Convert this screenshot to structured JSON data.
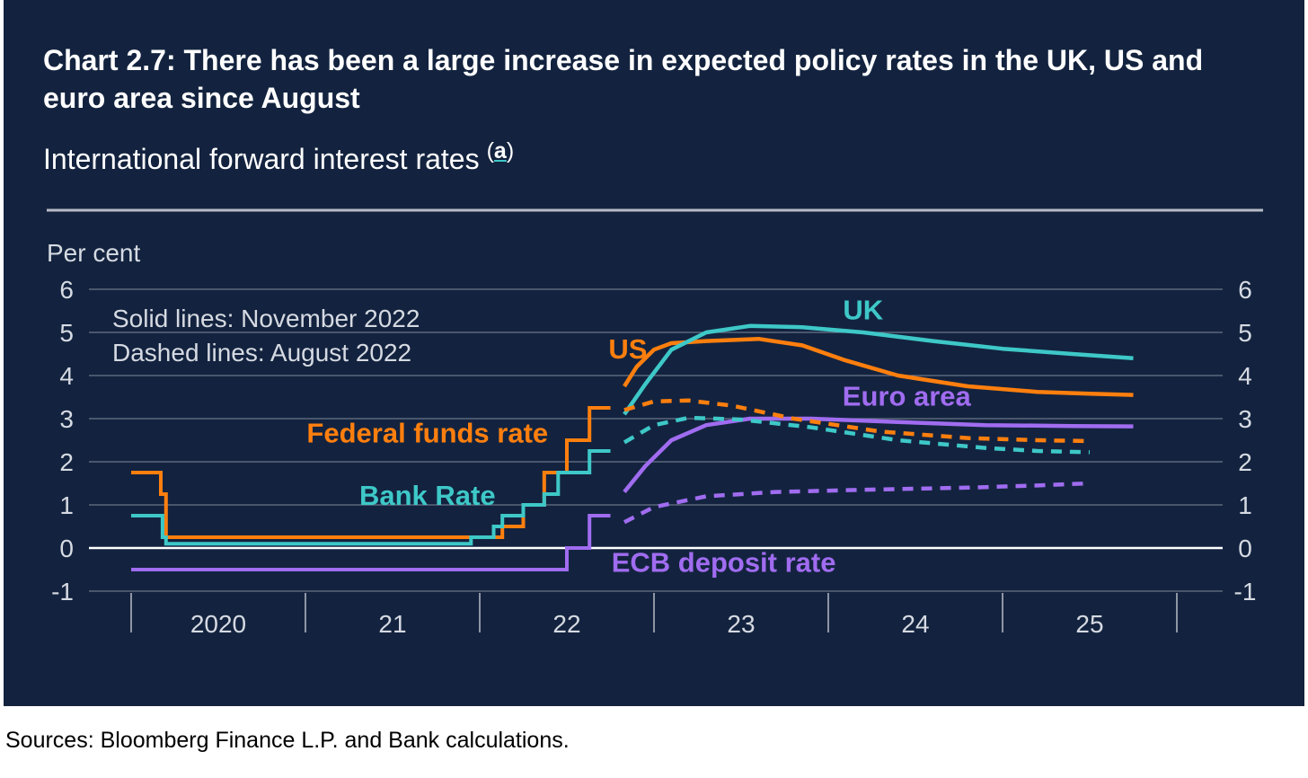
{
  "title": "Chart 2.7: There has been a large increase in expected policy rates in the UK, US and euro area since August",
  "subtitle": "International forward interest rates",
  "footnote_marker": "a",
  "sources": "Sources: Bloomberg Finance L.P. and Bank calculations.",
  "colors": {
    "background": "#13233f",
    "us": "#ff7f0e",
    "uk": "#3ec8c8",
    "euro": "#a06cf0",
    "text": "#ffffff",
    "axis_text": "#d6dae2"
  },
  "chart_data": {
    "type": "line",
    "ylabel": "Per cent",
    "ylim": [
      -1,
      6
    ],
    "yticks": [
      "-1",
      "0",
      "1",
      "2",
      "3",
      "4",
      "5",
      "6"
    ],
    "xlim": [
      2020.0,
      2026.0
    ],
    "xtick_labels": [
      "2020",
      "21",
      "22",
      "23",
      "24",
      "25"
    ],
    "grid": true,
    "annotation": [
      "Solid lines: November 2022",
      "Dashed lines: August 2022"
    ],
    "series": [
      {
        "name": "Federal funds rate",
        "key": "fed",
        "color": "#ff7f0e",
        "style": "step",
        "points": [
          [
            2020.0,
            1.75
          ],
          [
            2020.17,
            1.75
          ],
          [
            2020.17,
            1.25
          ],
          [
            2020.2,
            1.25
          ],
          [
            2020.2,
            0.25
          ],
          [
            2022.13,
            0.25
          ],
          [
            2022.13,
            0.5
          ],
          [
            2022.25,
            0.5
          ],
          [
            2022.25,
            1.0
          ],
          [
            2022.37,
            1.0
          ],
          [
            2022.37,
            1.75
          ],
          [
            2022.5,
            1.75
          ],
          [
            2022.5,
            2.5
          ],
          [
            2022.63,
            2.5
          ],
          [
            2022.63,
            3.25
          ],
          [
            2022.75,
            3.25
          ]
        ]
      },
      {
        "name": "Bank Rate",
        "key": "bank",
        "color": "#3ec8c8",
        "style": "step",
        "points": [
          [
            2020.0,
            0.75
          ],
          [
            2020.18,
            0.75
          ],
          [
            2020.18,
            0.25
          ],
          [
            2020.2,
            0.25
          ],
          [
            2020.2,
            0.1
          ],
          [
            2021.95,
            0.1
          ],
          [
            2021.95,
            0.25
          ],
          [
            2022.08,
            0.25
          ],
          [
            2022.08,
            0.5
          ],
          [
            2022.13,
            0.5
          ],
          [
            2022.13,
            0.75
          ],
          [
            2022.25,
            0.75
          ],
          [
            2022.25,
            1.0
          ],
          [
            2022.37,
            1.0
          ],
          [
            2022.37,
            1.25
          ],
          [
            2022.45,
            1.25
          ],
          [
            2022.45,
            1.75
          ],
          [
            2022.63,
            1.75
          ],
          [
            2022.63,
            2.25
          ],
          [
            2022.75,
            2.25
          ]
        ]
      },
      {
        "name": "ECB deposit rate",
        "key": "ecb",
        "color": "#a06cf0",
        "style": "step",
        "points": [
          [
            2020.0,
            -0.5
          ],
          [
            2022.5,
            -0.5
          ],
          [
            2022.5,
            0.0
          ],
          [
            2022.63,
            0.0
          ],
          [
            2022.63,
            0.75
          ],
          [
            2022.75,
            0.75
          ]
        ]
      },
      {
        "name": "US",
        "key": "us_nov",
        "color": "#ff7f0e",
        "style": "solid",
        "points": [
          [
            2022.83,
            3.75
          ],
          [
            2022.9,
            4.2
          ],
          [
            2023.0,
            4.6
          ],
          [
            2023.1,
            4.75
          ],
          [
            2023.3,
            4.8
          ],
          [
            2023.6,
            4.85
          ],
          [
            2023.85,
            4.7
          ],
          [
            2024.1,
            4.35
          ],
          [
            2024.4,
            4.0
          ],
          [
            2024.8,
            3.75
          ],
          [
            2025.2,
            3.62
          ],
          [
            2025.5,
            3.58
          ],
          [
            2025.75,
            3.55
          ]
        ]
      },
      {
        "name": "UK",
        "key": "uk_nov",
        "color": "#3ec8c8",
        "style": "solid",
        "points": [
          [
            2022.83,
            3.1
          ],
          [
            2022.95,
            3.8
          ],
          [
            2023.1,
            4.6
          ],
          [
            2023.3,
            5.0
          ],
          [
            2023.55,
            5.15
          ],
          [
            2023.85,
            5.12
          ],
          [
            2024.2,
            5.0
          ],
          [
            2024.6,
            4.8
          ],
          [
            2025.0,
            4.62
          ],
          [
            2025.4,
            4.5
          ],
          [
            2025.75,
            4.4
          ]
        ]
      },
      {
        "name": "Euro area",
        "key": "euro_nov",
        "color": "#a06cf0",
        "style": "solid",
        "points": [
          [
            2022.83,
            1.3
          ],
          [
            2022.95,
            1.9
          ],
          [
            2023.1,
            2.5
          ],
          [
            2023.3,
            2.85
          ],
          [
            2023.55,
            3.0
          ],
          [
            2023.9,
            3.0
          ],
          [
            2024.4,
            2.92
          ],
          [
            2024.9,
            2.85
          ],
          [
            2025.4,
            2.83
          ],
          [
            2025.75,
            2.82
          ]
        ]
      },
      {
        "name": "",
        "key": "us_aug",
        "color": "#ff7f0e",
        "style": "dashed",
        "points": [
          [
            2022.83,
            3.2
          ],
          [
            2023.0,
            3.4
          ],
          [
            2023.2,
            3.42
          ],
          [
            2023.45,
            3.3
          ],
          [
            2023.8,
            3.0
          ],
          [
            2024.3,
            2.7
          ],
          [
            2024.8,
            2.55
          ],
          [
            2025.2,
            2.5
          ],
          [
            2025.5,
            2.48
          ]
        ]
      },
      {
        "name": "",
        "key": "uk_aug",
        "color": "#3ec8c8",
        "style": "dashed",
        "points": [
          [
            2022.83,
            2.45
          ],
          [
            2023.0,
            2.85
          ],
          [
            2023.2,
            3.02
          ],
          [
            2023.5,
            2.98
          ],
          [
            2023.9,
            2.8
          ],
          [
            2024.4,
            2.5
          ],
          [
            2024.9,
            2.32
          ],
          [
            2025.2,
            2.25
          ],
          [
            2025.5,
            2.22
          ]
        ]
      },
      {
        "name": "",
        "key": "euro_aug",
        "color": "#a06cf0",
        "style": "dashed",
        "points": [
          [
            2022.83,
            0.6
          ],
          [
            2023.0,
            0.95
          ],
          [
            2023.3,
            1.2
          ],
          [
            2023.7,
            1.3
          ],
          [
            2024.2,
            1.35
          ],
          [
            2024.8,
            1.4
          ],
          [
            2025.2,
            1.45
          ],
          [
            2025.5,
            1.5
          ]
        ]
      }
    ],
    "series_labels": [
      {
        "text": "UK",
        "key": "uk_nov",
        "color": "#3ec8c8",
        "x": 2024.2,
        "y": 5.3
      },
      {
        "text": "US",
        "key": "us_nov",
        "color": "#ff7f0e",
        "x": 2022.85,
        "y": 4.4
      },
      {
        "text": "Euro area",
        "key": "euro_nov",
        "color": "#a06cf0",
        "x": 2024.45,
        "y": 3.3
      },
      {
        "text": "Federal funds rate",
        "key": "fed",
        "color": "#ff7f0e",
        "x": 2021.7,
        "y": 2.45
      },
      {
        "text": "Bank Rate",
        "key": "bank",
        "color": "#3ec8c8",
        "x": 2021.7,
        "y": 1.0
      },
      {
        "text": "ECB deposit rate",
        "key": "ecb",
        "color": "#a06cf0",
        "x": 2023.4,
        "y": -0.55
      }
    ]
  }
}
